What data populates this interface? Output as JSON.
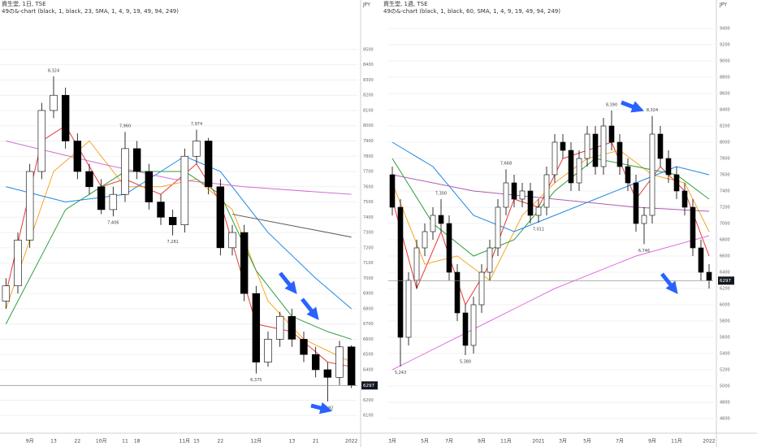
{
  "chart_data": [
    {
      "type": "candlestick",
      "title": "資生堂, 1日, TSE",
      "subtitle": "49の&-chart (black, 1, black, 23, SMA, 1, 4, 9, 19, 49, 94, 249)",
      "currency": "JPY",
      "categories": [
        null,
        null,
        "9月",
        null,
        "13",
        null,
        "22",
        null,
        "10月",
        null,
        "11",
        "18",
        null,
        null,
        null,
        "11月",
        "15",
        null,
        "22",
        null,
        null,
        "12月",
        null,
        null,
        "13",
        null,
        "21",
        null,
        null,
        "2022"
      ],
      "open": [
        6850,
        6950,
        7250,
        7700,
        8100,
        8200,
        7900,
        7700,
        7600,
        7450,
        7550,
        7850,
        7700,
        7500,
        7400,
        7350,
        7800,
        7900,
        7600,
        7200,
        7300,
        6900,
        6450,
        6600,
        6750,
        6600,
        6500,
        6400,
        6350,
        6550
      ],
      "high": [
        7000,
        7300,
        7750,
        8150,
        8324,
        8250,
        7950,
        7750,
        7650,
        7600,
        7960,
        7900,
        7750,
        7550,
        7450,
        7850,
        7974,
        7920,
        7650,
        7350,
        7350,
        6950,
        6650,
        6780,
        6800,
        6650,
        6550,
        6450,
        6590,
        6560
      ],
      "low": [
        6800,
        6900,
        7200,
        7650,
        8050,
        7850,
        7650,
        7550,
        7420,
        7406,
        7500,
        7650,
        7450,
        7350,
        7281,
        7300,
        7750,
        7550,
        7150,
        7150,
        6850,
        6375,
        6420,
        6550,
        6550,
        6450,
        6350,
        6192,
        6300,
        6280
      ],
      "close": [
        6950,
        7250,
        7700,
        8100,
        8200,
        7900,
        7700,
        7600,
        7450,
        7550,
        7850,
        7700,
        7500,
        7400,
        7350,
        7800,
        7900,
        7600,
        7200,
        7300,
        6900,
        6450,
        6600,
        6750,
        6600,
        6500,
        6400,
        6350,
        6550,
        6297
      ],
      "up_color": "#ffffff",
      "down_color": "#000000",
      "ylim": [
        6000,
        8750
      ],
      "yticks": [
        6100,
        6200,
        6300,
        6400,
        6500,
        6600,
        6700,
        6800,
        6900,
        7000,
        7100,
        7200,
        7300,
        7400,
        7500,
        7600,
        7700,
        7800,
        7900,
        8000,
        8100,
        8200,
        8300,
        8400,
        8500
      ],
      "grid": true,
      "lines": [
        {
          "color": "#e53935",
          "x": [
            0,
            3,
            5,
            8,
            10,
            13,
            16,
            18,
            21,
            24,
            27,
            29
          ],
          "values": [
            6900,
            7900,
            8000,
            7600,
            7650,
            7550,
            7750,
            7500,
            6700,
            6650,
            6450,
            6420
          ]
        },
        {
          "color": "#f5a623",
          "x": [
            0,
            4,
            7,
            10,
            13,
            16,
            19,
            22,
            25,
            29
          ],
          "values": [
            6800,
            7700,
            7900,
            7600,
            7600,
            7650,
            7450,
            6850,
            6600,
            6450
          ]
        },
        {
          "color": "#2e9e3e",
          "x": [
            0,
            5,
            10,
            15,
            18,
            21,
            24,
            27,
            29
          ],
          "values": [
            6700,
            7450,
            7700,
            7700,
            7550,
            7050,
            6750,
            6650,
            6600
          ]
        },
        {
          "color": "#1e88e5",
          "x": [
            0,
            5,
            10,
            15,
            18,
            22,
            26,
            29
          ],
          "values": [
            7600,
            7500,
            7550,
            7800,
            7700,
            7300,
            7000,
            6800
          ]
        },
        {
          "color": "#d26fd2",
          "x": [
            0,
            8,
            14,
            20,
            29
          ],
          "values": [
            7900,
            7750,
            7650,
            7600,
            7550
          ]
        },
        {
          "color": "#555555",
          "x": [
            19,
            29
          ],
          "values": [
            7420,
            7270
          ]
        }
      ],
      "annotations": [
        {
          "label": "8,324",
          "value": 8324,
          "index": 4,
          "pos": "above"
        },
        {
          "label": "7,960",
          "value": 7960,
          "index": 10,
          "pos": "above"
        },
        {
          "label": "7,974",
          "value": 7974,
          "index": 16,
          "pos": "above"
        },
        {
          "label": "7,406",
          "value": 7406,
          "index": 9,
          "pos": "below"
        },
        {
          "label": "7,281",
          "value": 7281,
          "index": 14,
          "pos": "below"
        },
        {
          "label": "6,375",
          "value": 6375,
          "index": 21,
          "pos": "below"
        },
        {
          "label": "6,192",
          "value": 6192,
          "index": 27,
          "pos": "below"
        }
      ],
      "last_price": 6297
    },
    {
      "type": "candlestick",
      "title": "資生堂, 1週, TSE",
      "subtitle": "49の&-chart (black, 1, black, 60, SMA, 1, 4, 9, 19, 49, 94, 249)",
      "currency": "JPY",
      "categories": [
        "3月",
        null,
        null,
        null,
        "5月",
        null,
        null,
        "7月",
        null,
        null,
        null,
        "9月",
        null,
        null,
        "11月",
        null,
        null,
        null,
        "2021",
        null,
        null,
        "3月",
        null,
        null,
        "5月",
        null,
        null,
        null,
        "7月",
        null,
        null,
        null,
        "9月",
        null,
        null,
        "11月",
        null,
        null,
        null,
        "2022"
      ],
      "open": [
        7600,
        7200,
        5600,
        6300,
        6700,
        6900,
        7100,
        7000,
        6400,
        5900,
        5500,
        6000,
        6400,
        6700,
        7200,
        7500,
        7300,
        7400,
        7100,
        7200,
        7600,
        8000,
        7900,
        7500,
        7800,
        8100,
        7700,
        8200,
        8000,
        7700,
        7500,
        7000,
        7100,
        8100,
        7800,
        7600,
        7400,
        7200,
        6700,
        6400
      ],
      "high": [
        7700,
        7300,
        6400,
        6800,
        7000,
        7200,
        7300,
        7100,
        6500,
        6000,
        6100,
        6500,
        6800,
        7300,
        7668,
        7600,
        7500,
        7500,
        7300,
        7700,
        8100,
        8100,
        8000,
        7900,
        8200,
        8200,
        8300,
        8390,
        8100,
        7800,
        7600,
        7200,
        8324,
        8200,
        7900,
        7700,
        7500,
        7300,
        6800,
        6500
      ],
      "low": [
        7100,
        5243,
        5500,
        6200,
        6600,
        6800,
        6900,
        6300,
        5800,
        5380,
        5400,
        5900,
        6300,
        6600,
        7100,
        7200,
        7200,
        7000,
        7011,
        7100,
        7500,
        7800,
        7400,
        7400,
        7700,
        7600,
        7600,
        7900,
        7600,
        7400,
        6900,
        6746,
        7000,
        7700,
        7500,
        7300,
        7100,
        6600,
        6300,
        6200
      ],
      "close": [
        7200,
        5600,
        6300,
        6700,
        6900,
        7100,
        7000,
        6400,
        5900,
        5500,
        6000,
        6400,
        6700,
        7200,
        7500,
        7300,
        7400,
        7100,
        7200,
        7600,
        8000,
        7900,
        7500,
        7800,
        8100,
        7700,
        8200,
        8000,
        7700,
        7500,
        7000,
        7100,
        8100,
        7800,
        7600,
        7400,
        7200,
        6700,
        6400,
        6297
      ],
      "up_color": "#ffffff",
      "down_color": "#000000",
      "ylim": [
        4450,
        9610
      ],
      "yticks": [
        4600,
        4800,
        5000,
        5200,
        5400,
        5600,
        5800,
        6000,
        6200,
        6400,
        6600,
        6800,
        7000,
        7200,
        7400,
        7600,
        7800,
        8000,
        8200,
        8400,
        8600,
        8800,
        9000,
        9200,
        9400
      ],
      "grid": true,
      "lines": [
        {
          "color": "#e53935",
          "x": [
            0,
            3,
            6,
            9,
            12,
            15,
            18,
            21,
            24,
            27,
            30,
            33,
            36,
            39
          ],
          "values": [
            7300,
            6200,
            6900,
            6000,
            6500,
            7300,
            7200,
            7800,
            7900,
            8000,
            7300,
            7700,
            7400,
            6600
          ]
        },
        {
          "color": "#f5a623",
          "x": [
            0,
            4,
            8,
            12,
            16,
            20,
            24,
            28,
            32,
            36,
            39
          ],
          "values": [
            7500,
            6500,
            6600,
            6300,
            7100,
            7500,
            7800,
            7900,
            7600,
            7500,
            6900
          ]
        },
        {
          "color": "#2e9e3e",
          "x": [
            0,
            5,
            10,
            15,
            20,
            25,
            30,
            35,
            39
          ],
          "values": [
            7800,
            7000,
            6600,
            6800,
            7400,
            7800,
            7700,
            7600,
            7300
          ]
        },
        {
          "color": "#1e88e5",
          "x": [
            0,
            5,
            10,
            15,
            20,
            25,
            30,
            35,
            39
          ],
          "values": [
            8000,
            7700,
            7100,
            6900,
            7100,
            7300,
            7500,
            7700,
            7600
          ]
        },
        {
          "color": "#b05bb0",
          "x": [
            0,
            10,
            20,
            30,
            39
          ],
          "values": [
            7600,
            7400,
            7300,
            7200,
            7150
          ]
        },
        {
          "color": "#e070e0",
          "x": [
            0,
            10,
            20,
            30,
            39
          ],
          "values": [
            5200,
            5700,
            6200,
            6600,
            6850
          ]
        }
      ],
      "annotations": [
        {
          "label": "5,243",
          "value": 5243,
          "index": 1,
          "pos": "below"
        },
        {
          "label": "7,300",
          "value": 7300,
          "index": 6,
          "pos": "above"
        },
        {
          "label": "5,380",
          "value": 5380,
          "index": 9,
          "pos": "below"
        },
        {
          "label": "7,668",
          "value": 7668,
          "index": 14,
          "pos": "above"
        },
        {
          "label": "7,011",
          "value": 7011,
          "index": 18,
          "pos": "below"
        },
        {
          "label": "8,390",
          "value": 8390,
          "index": 27,
          "pos": "above"
        },
        {
          "label": "6,746",
          "value": 6746,
          "index": 31,
          "pos": "below"
        },
        {
          "label": "8,324",
          "value": 8324,
          "index": 32,
          "pos": "above"
        }
      ],
      "last_price": 6297
    }
  ]
}
